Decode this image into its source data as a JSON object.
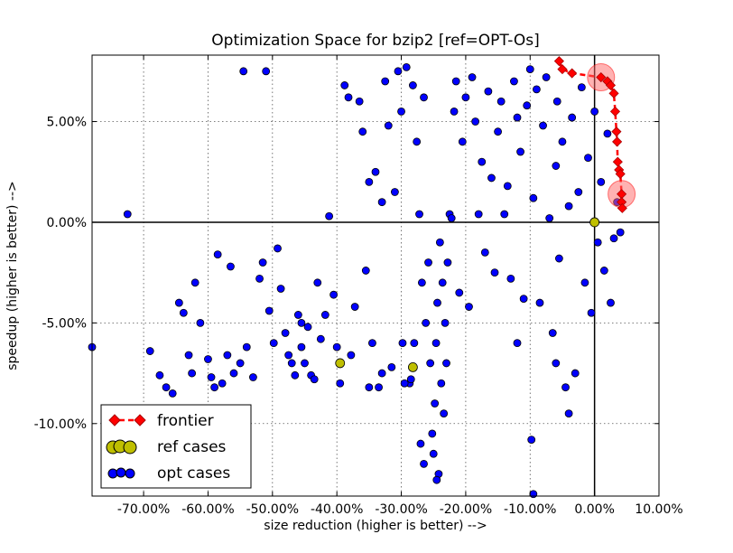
{
  "chart_data": {
    "type": "scatter",
    "title": "Optimization Space for bzip2 [ref=OPT-Os]",
    "xlabel": "size reduction (higher is better) -->",
    "ylabel": "speedup (higher is better) -->",
    "xlim": [
      -0.78,
      0.1
    ],
    "ylim": [
      -0.136,
      0.083
    ],
    "x_ticks": [
      {
        "value": -0.7,
        "label": "-70.00%"
      },
      {
        "value": -0.6,
        "label": "-60.00%"
      },
      {
        "value": -0.5,
        "label": "-50.00%"
      },
      {
        "value": -0.4,
        "label": "-40.00%"
      },
      {
        "value": -0.3,
        "label": "-30.00%"
      },
      {
        "value": -0.2,
        "label": "-20.00%"
      },
      {
        "value": -0.1,
        "label": "-10.00%"
      },
      {
        "value": 0.0,
        "label": "0.00%"
      },
      {
        "value": 0.1,
        "label": "10.00%"
      }
    ],
    "y_ticks": [
      {
        "value": -0.1,
        "label": "-10.00%"
      },
      {
        "value": -0.05,
        "label": "-5.00%"
      },
      {
        "value": 0.0,
        "label": "0.00%"
      },
      {
        "value": 0.05,
        "label": "5.00%"
      }
    ],
    "grid": true,
    "legend_position": "bottom-left",
    "colors": {
      "opt": "#0000ff",
      "ref": "#bfbf00",
      "frontier": "#ff0000",
      "highlight": "#ff6666"
    },
    "series": [
      {
        "name": "frontier",
        "style": "dashed-line-diamond",
        "points": [
          [
            -0.055,
            0.08
          ],
          [
            -0.05,
            0.076
          ],
          [
            -0.035,
            0.074
          ],
          [
            0.01,
            0.072
          ],
          [
            0.02,
            0.07
          ],
          [
            0.025,
            0.068
          ],
          [
            0.03,
            0.064
          ],
          [
            0.032,
            0.055
          ],
          [
            0.034,
            0.045
          ],
          [
            0.035,
            0.04
          ],
          [
            0.036,
            0.03
          ],
          [
            0.038,
            0.026
          ],
          [
            0.04,
            0.024
          ],
          [
            0.042,
            0.014
          ],
          [
            0.042,
            0.01
          ],
          [
            0.043,
            0.007
          ]
        ]
      },
      {
        "name": "ref cases",
        "points": [
          [
            0.0,
            0.0
          ],
          [
            -0.395,
            -0.07
          ],
          [
            -0.282,
            -0.072
          ]
        ]
      },
      {
        "name": "opt cases",
        "points": [
          [
            -0.78,
            -0.062
          ],
          [
            -0.725,
            0.004
          ],
          [
            -0.69,
            -0.064
          ],
          [
            -0.675,
            -0.076
          ],
          [
            -0.665,
            -0.082
          ],
          [
            -0.655,
            -0.085
          ],
          [
            -0.645,
            -0.04
          ],
          [
            -0.638,
            -0.045
          ],
          [
            -0.63,
            -0.066
          ],
          [
            -0.625,
            -0.075
          ],
          [
            -0.62,
            -0.03
          ],
          [
            -0.612,
            -0.05
          ],
          [
            -0.6,
            -0.068
          ],
          [
            -0.595,
            -0.077
          ],
          [
            -0.59,
            -0.082
          ],
          [
            -0.585,
            -0.016
          ],
          [
            -0.578,
            -0.08
          ],
          [
            -0.57,
            -0.066
          ],
          [
            -0.565,
            -0.022
          ],
          [
            -0.56,
            -0.075
          ],
          [
            -0.55,
            -0.07
          ],
          [
            -0.545,
            0.075
          ],
          [
            -0.54,
            -0.062
          ],
          [
            -0.53,
            -0.077
          ],
          [
            -0.52,
            -0.028
          ],
          [
            -0.515,
            -0.02
          ],
          [
            -0.51,
            0.075
          ],
          [
            -0.505,
            -0.044
          ],
          [
            -0.498,
            -0.06
          ],
          [
            -0.492,
            -0.013
          ],
          [
            -0.487,
            -0.033
          ],
          [
            -0.48,
            -0.055
          ],
          [
            -0.475,
            -0.066
          ],
          [
            -0.47,
            -0.07
          ],
          [
            -0.465,
            -0.076
          ],
          [
            -0.46,
            -0.046
          ],
          [
            -0.455,
            -0.062
          ],
          [
            -0.45,
            -0.07
          ],
          [
            -0.445,
            -0.052
          ],
          [
            -0.44,
            -0.076
          ],
          [
            -0.435,
            -0.078
          ],
          [
            -0.43,
            -0.03
          ],
          [
            -0.425,
            -0.058
          ],
          [
            -0.418,
            -0.046
          ],
          [
            -0.412,
            0.003
          ],
          [
            -0.405,
            -0.036
          ],
          [
            -0.4,
            -0.062
          ],
          [
            -0.395,
            -0.08
          ],
          [
            -0.388,
            0.068
          ],
          [
            -0.382,
            0.062
          ],
          [
            -0.378,
            -0.066
          ],
          [
            -0.372,
            -0.042
          ],
          [
            -0.365,
            0.06
          ],
          [
            -0.36,
            0.045
          ],
          [
            -0.355,
            -0.024
          ],
          [
            -0.35,
            0.02
          ],
          [
            -0.345,
            -0.06
          ],
          [
            -0.34,
            0.025
          ],
          [
            -0.335,
            -0.082
          ],
          [
            -0.33,
            0.01
          ],
          [
            -0.325,
            0.07
          ],
          [
            -0.32,
            0.048
          ],
          [
            -0.315,
            -0.072
          ],
          [
            -0.31,
            0.015
          ],
          [
            -0.305,
            0.075
          ],
          [
            -0.3,
            0.055
          ],
          [
            -0.298,
            -0.06
          ],
          [
            -0.292,
            0.077
          ],
          [
            -0.287,
            -0.08
          ],
          [
            -0.282,
            0.068
          ],
          [
            -0.276,
            0.04
          ],
          [
            -0.272,
            0.004
          ],
          [
            -0.268,
            -0.03
          ],
          [
            -0.265,
            0.062
          ],
          [
            -0.262,
            -0.05
          ],
          [
            -0.258,
            -0.02
          ],
          [
            -0.255,
            -0.07
          ],
          [
            -0.252,
            -0.105
          ],
          [
            -0.25,
            -0.115
          ],
          [
            -0.248,
            -0.09
          ],
          [
            -0.246,
            -0.06
          ],
          [
            -0.244,
            -0.04
          ],
          [
            -0.242,
            -0.125
          ],
          [
            -0.24,
            -0.01
          ],
          [
            -0.238,
            -0.08
          ],
          [
            -0.236,
            -0.03
          ],
          [
            -0.234,
            -0.095
          ],
          [
            -0.232,
            -0.05
          ],
          [
            -0.23,
            -0.07
          ],
          [
            -0.228,
            -0.02
          ],
          [
            -0.225,
            0.004
          ],
          [
            -0.222,
            0.002
          ],
          [
            -0.218,
            0.055
          ],
          [
            -0.215,
            0.07
          ],
          [
            -0.21,
            -0.035
          ],
          [
            -0.205,
            0.04
          ],
          [
            -0.2,
            0.062
          ],
          [
            -0.195,
            -0.042
          ],
          [
            -0.19,
            0.072
          ],
          [
            -0.185,
            0.05
          ],
          [
            -0.18,
            0.004
          ],
          [
            -0.175,
            0.03
          ],
          [
            -0.17,
            -0.015
          ],
          [
            -0.165,
            0.065
          ],
          [
            -0.16,
            0.022
          ],
          [
            -0.155,
            -0.025
          ],
          [
            -0.15,
            0.045
          ],
          [
            -0.145,
            0.06
          ],
          [
            -0.14,
            0.004
          ],
          [
            -0.135,
            0.018
          ],
          [
            -0.13,
            -0.028
          ],
          [
            -0.125,
            0.07
          ],
          [
            -0.12,
            0.052
          ],
          [
            -0.115,
            0.035
          ],
          [
            -0.11,
            -0.038
          ],
          [
            -0.105,
            0.058
          ],
          [
            -0.1,
            0.076
          ],
          [
            -0.098,
            -0.108
          ],
          [
            -0.095,
            0.012
          ],
          [
            -0.09,
            0.066
          ],
          [
            -0.085,
            -0.04
          ],
          [
            -0.08,
            0.048
          ],
          [
            -0.075,
            0.072
          ],
          [
            -0.07,
            0.002
          ],
          [
            -0.065,
            -0.055
          ],
          [
            -0.06,
            0.028
          ],
          [
            -0.058,
            0.06
          ],
          [
            -0.055,
            -0.018
          ],
          [
            -0.05,
            0.04
          ],
          [
            -0.045,
            -0.082
          ],
          [
            -0.04,
            0.008
          ],
          [
            -0.035,
            0.052
          ],
          [
            -0.03,
            -0.075
          ],
          [
            -0.025,
            0.015
          ],
          [
            -0.02,
            0.067
          ],
          [
            -0.015,
            -0.03
          ],
          [
            -0.01,
            0.032
          ],
          [
            -0.005,
            -0.045
          ],
          [
            0.0,
            0.055
          ],
          [
            0.005,
            -0.01
          ],
          [
            0.01,
            0.02
          ],
          [
            0.015,
            -0.024
          ],
          [
            0.02,
            0.044
          ],
          [
            0.025,
            -0.04
          ],
          [
            0.03,
            -0.008
          ],
          [
            0.035,
            0.01
          ],
          [
            0.04,
            -0.005
          ],
          [
            -0.095,
            -0.135
          ],
          [
            -0.04,
            -0.095
          ],
          [
            -0.06,
            -0.07
          ],
          [
            -0.28,
            -0.06
          ],
          [
            -0.285,
            -0.078
          ],
          [
            -0.295,
            -0.08
          ],
          [
            -0.265,
            -0.12
          ],
          [
            -0.27,
            -0.11
          ],
          [
            -0.245,
            -0.128
          ],
          [
            -0.455,
            -0.05
          ],
          [
            -0.35,
            -0.082
          ],
          [
            -0.33,
            -0.075
          ],
          [
            -0.12,
            -0.06
          ]
        ]
      }
    ]
  }
}
